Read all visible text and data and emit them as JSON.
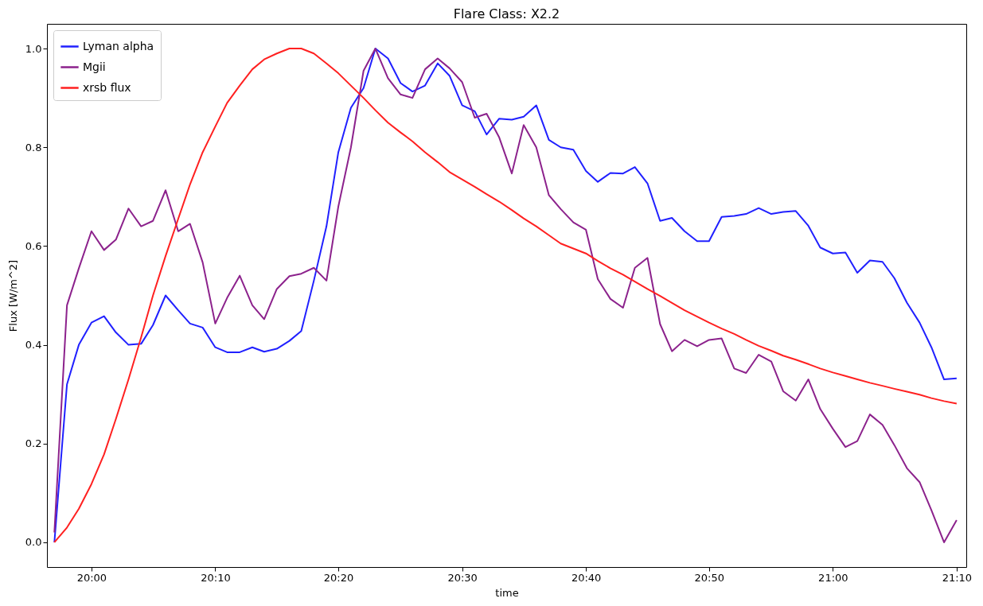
{
  "chart_data": {
    "type": "line",
    "title": "Flare Class: X2.2",
    "xlabel": "time",
    "ylabel": "Flux [W/m^2]",
    "legend": "top left",
    "grid": false,
    "x": [
      19.95,
      19.967,
      19.983,
      20.0,
      20.017,
      20.033,
      20.05,
      20.067,
      20.083,
      20.1,
      20.117,
      20.133,
      20.15,
      20.167,
      20.183,
      20.2,
      20.217,
      20.233,
      20.25,
      20.267,
      20.283,
      20.3,
      20.317,
      20.333,
      20.35,
      20.367,
      20.383,
      20.4,
      20.417,
      20.433,
      20.45,
      20.467,
      20.483,
      20.5,
      20.517,
      20.533,
      20.55,
      20.567,
      20.583,
      20.6,
      20.617,
      20.633,
      20.65,
      20.667,
      20.683,
      20.7,
      20.717,
      20.733,
      20.75,
      20.767,
      20.783,
      20.8,
      20.817,
      20.833,
      20.85,
      20.867,
      20.883,
      20.9,
      20.917,
      20.933,
      20.95,
      20.967,
      20.983,
      21.0,
      21.017,
      21.033,
      21.05,
      21.067,
      21.083,
      21.1,
      21.117,
      21.133,
      21.15,
      21.167
    ],
    "xlim": [
      19.94,
      21.18
    ],
    "xticks": [
      {
        "value": 20.0,
        "label": "20:00"
      },
      {
        "value": 20.167,
        "label": "20:10"
      },
      {
        "value": 20.333,
        "label": "20:20"
      },
      {
        "value": 20.5,
        "label": "20:30"
      },
      {
        "value": 20.667,
        "label": "20:40"
      },
      {
        "value": 20.833,
        "label": "20:50"
      },
      {
        "value": 21.0,
        "label": "21:00"
      },
      {
        "value": 21.167,
        "label": "21:10"
      }
    ],
    "ylim": [
      -0.05,
      1.05
    ],
    "yticks": [
      {
        "value": 0,
        "label": "0.0"
      },
      0.2,
      0.4,
      0.6,
      0.8,
      {
        "value": 1,
        "label": "1.0"
      }
    ],
    "series": [
      {
        "name": "Lyman alpha",
        "color": "#2020ff",
        "values": [
          0.0,
          0.32,
          0.4,
          0.445,
          0.458,
          0.425,
          0.4,
          0.402,
          0.44,
          0.5,
          0.47,
          0.443,
          0.435,
          0.395,
          0.385,
          0.385,
          0.395,
          0.386,
          0.392,
          0.408,
          0.428,
          0.53,
          0.64,
          0.79,
          0.88,
          0.92,
          1.0,
          0.98,
          0.93,
          0.913,
          0.925,
          0.97,
          0.945,
          0.885,
          0.873,
          0.826,
          0.858,
          0.856,
          0.862,
          0.885,
          0.815,
          0.8,
          0.795,
          0.752,
          0.73,
          0.748,
          0.747,
          0.76,
          0.727,
          0.651,
          0.657,
          0.63,
          0.61,
          0.61,
          0.659,
          0.661,
          0.665,
          0.677,
          0.665,
          0.669,
          0.671,
          0.641,
          0.597,
          0.585,
          0.587,
          0.546,
          0.571,
          0.568,
          0.535,
          0.485,
          0.445,
          0.395,
          0.33,
          0.332
        ]
      },
      {
        "name": "Mgii",
        "color": "#8c228c",
        "values": [
          0.02,
          0.48,
          0.555,
          0.63,
          0.592,
          0.613,
          0.676,
          0.64,
          0.651,
          0.713,
          0.63,
          0.645,
          0.567,
          0.443,
          0.495,
          0.54,
          0.48,
          0.452,
          0.513,
          0.539,
          0.544,
          0.556,
          0.53,
          0.68,
          0.8,
          0.955,
          1.0,
          0.94,
          0.907,
          0.9,
          0.958,
          0.98,
          0.96,
          0.932,
          0.86,
          0.868,
          0.82,
          0.747,
          0.845,
          0.8,
          0.703,
          0.675,
          0.648,
          0.633,
          0.533,
          0.493,
          0.475,
          0.556,
          0.576,
          0.442,
          0.387,
          0.41,
          0.397,
          0.41,
          0.413,
          0.352,
          0.343,
          0.38,
          0.366,
          0.306,
          0.287,
          0.33,
          0.27,
          0.23,
          0.193,
          0.205,
          0.259,
          0.238,
          0.197,
          0.15,
          0.122,
          0.065,
          0.0,
          0.045
        ]
      },
      {
        "name": "xrsb flux",
        "color": "#ff2020",
        "values": [
          0.0,
          0.03,
          0.068,
          0.118,
          0.178,
          0.25,
          0.33,
          0.415,
          0.5,
          0.58,
          0.655,
          0.725,
          0.79,
          0.842,
          0.89,
          0.925,
          0.958,
          0.978,
          0.99,
          1.0,
          1.0,
          0.99,
          0.97,
          0.95,
          0.925,
          0.9,
          0.875,
          0.85,
          0.83,
          0.812,
          0.79,
          0.77,
          0.75,
          0.735,
          0.72,
          0.705,
          0.69,
          0.673,
          0.656,
          0.64,
          0.622,
          0.605,
          0.595,
          0.585,
          0.57,
          0.555,
          0.542,
          0.528,
          0.513,
          0.499,
          0.485,
          0.47,
          0.457,
          0.445,
          0.433,
          0.422,
          0.41,
          0.398,
          0.388,
          0.378,
          0.37,
          0.361,
          0.352,
          0.344,
          0.337,
          0.33,
          0.323,
          0.317,
          0.311,
          0.305,
          0.299,
          0.292,
          0.286,
          0.281
        ]
      }
    ]
  }
}
